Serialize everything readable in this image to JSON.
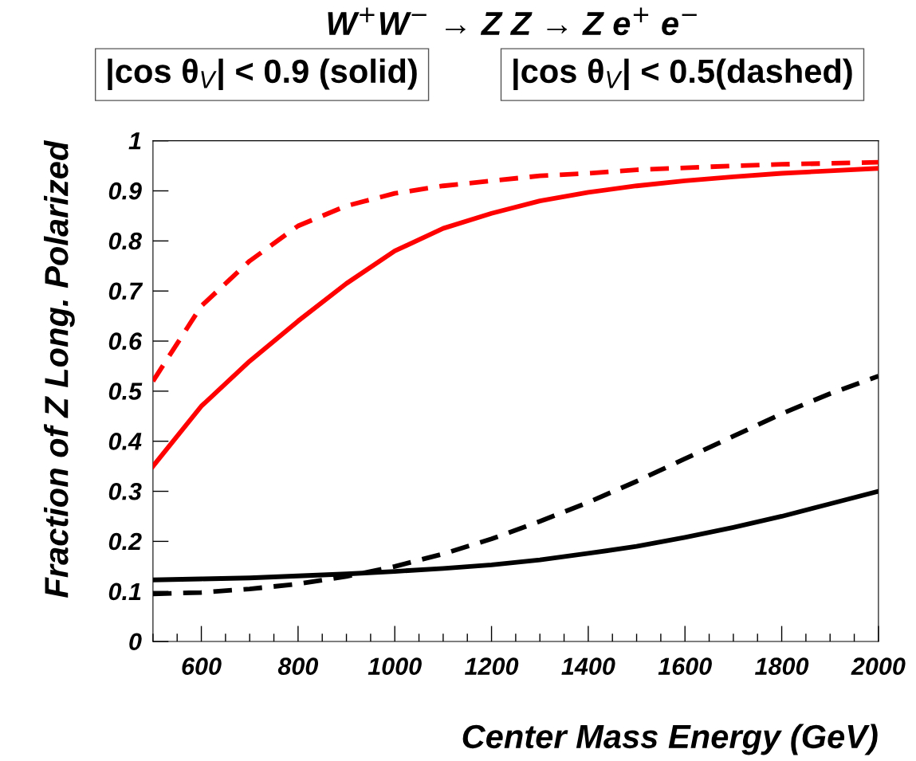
{
  "chart_data": {
    "type": "line",
    "title": "W$^{+}$W$^{−}$ → Z Z → Z e$^{+}$ e$^{−}$",
    "xlabel": "Center Mass Energy (GeV)",
    "ylabel": "Fraction of Z Long. Polarized",
    "annotations": [
      "|cos θ$_{V}$| < 0.9 (solid)",
      "|cos θ$_{V}$| < 0.5(dashed)"
    ],
    "x": [
      500,
      600,
      700,
      800,
      900,
      1000,
      1100,
      1200,
      1300,
      1400,
      1500,
      1600,
      1700,
      1800,
      1900,
      2000
    ],
    "series": [
      {
        "color": "#ff0000",
        "line_style": "solid",
        "values": [
          0.35,
          0.47,
          0.56,
          0.64,
          0.715,
          0.78,
          0.825,
          0.855,
          0.88,
          0.897,
          0.91,
          0.92,
          0.928,
          0.935,
          0.94,
          0.945
        ]
      },
      {
        "color": "#ff0000",
        "line_style": "dashed",
        "values": [
          0.52,
          0.67,
          0.76,
          0.83,
          0.87,
          0.895,
          0.91,
          0.92,
          0.93,
          0.935,
          0.942,
          0.946,
          0.95,
          0.953,
          0.955,
          0.957
        ]
      },
      {
        "color": "#000000",
        "line_style": "solid",
        "values": [
          0.123,
          0.125,
          0.127,
          0.131,
          0.135,
          0.14,
          0.146,
          0.153,
          0.163,
          0.176,
          0.19,
          0.208,
          0.228,
          0.25,
          0.275,
          0.3
        ]
      },
      {
        "color": "#000000",
        "line_style": "dashed",
        "values": [
          0.095,
          0.098,
          0.105,
          0.115,
          0.13,
          0.15,
          0.175,
          0.205,
          0.24,
          0.278,
          0.32,
          0.365,
          0.41,
          0.455,
          0.495,
          0.53
        ]
      }
    ],
    "xlim": [
      500,
      2000
    ],
    "ylim": [
      0,
      1
    ],
    "xticks": [
      600,
      800,
      1000,
      1200,
      1400,
      1600,
      1800,
      2000
    ],
    "yticks": [
      0,
      0.1,
      0.2,
      0.3,
      0.4,
      0.5,
      0.6,
      0.7,
      0.8,
      0.9,
      1
    ],
    "grid": false,
    "legend": false,
    "marker": "none"
  }
}
